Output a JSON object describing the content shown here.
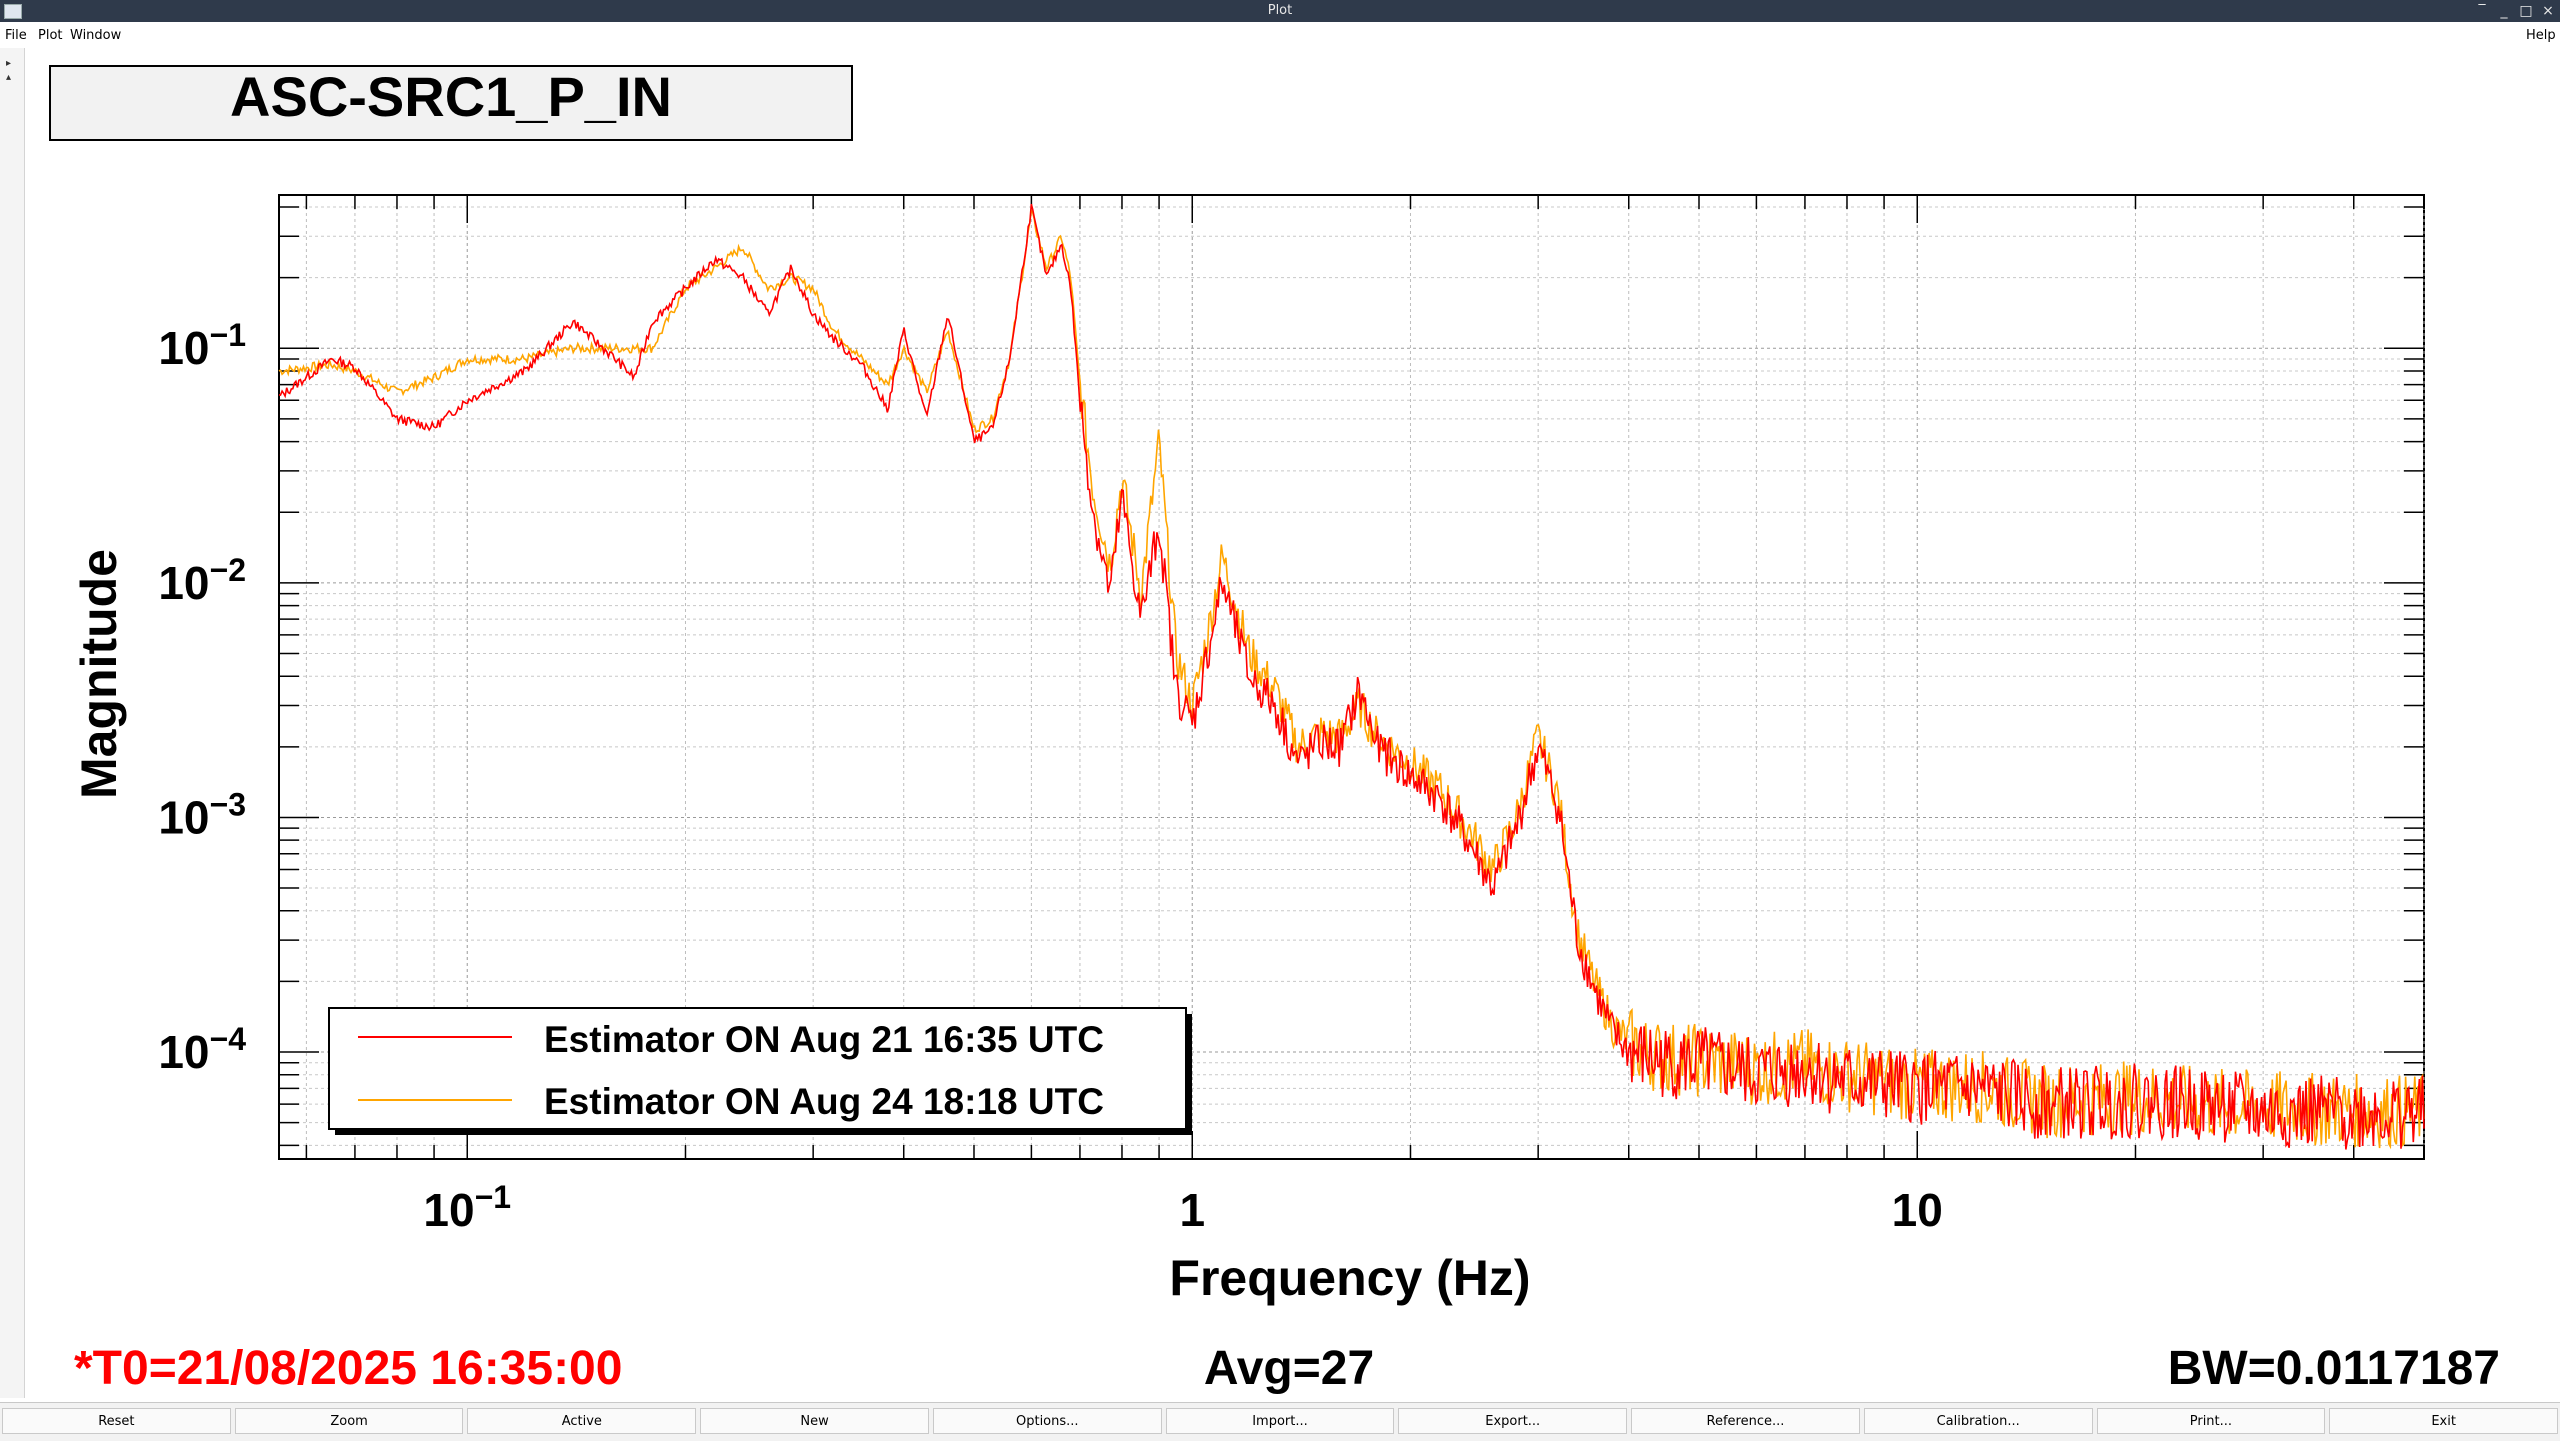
{
  "window": {
    "title": "Plot"
  },
  "menu": {
    "file": "File",
    "plot": "Plot",
    "window": "Window",
    "help": "Help"
  },
  "plot": {
    "title": "ASC-SRC1_P_IN",
    "xlabel": "Frequency (Hz)",
    "ylabel": "Magnitude",
    "t0": "*T0=21/08/2025 16:35:00",
    "avg": "Avg=27",
    "bw": "BW=0.0117187",
    "colors": {
      "series1": "#ff0000",
      "series2": "#ffa500",
      "t0": "#ff0000"
    }
  },
  "chart_data": {
    "type": "line",
    "title": "ASC-SRC1_P_IN",
    "xlabel": "Frequency (Hz)",
    "ylabel": "Magnitude",
    "xscale": "log",
    "yscale": "log",
    "xlim": [
      0.055,
      50
    ],
    "ylim": [
      3.5e-05,
      0.45
    ],
    "xticks": [
      "10^-1",
      "1",
      "10"
    ],
    "yticks": [
      "10^-1",
      "10^-2",
      "10^-3",
      "10^-4"
    ],
    "grid": true,
    "legend_position": "bottom-left",
    "series": [
      {
        "name": "Estimator ON Aug 21 16:35 UTC",
        "color": "#ff0000",
        "x": [
          0.055,
          0.065,
          0.07,
          0.08,
          0.09,
          0.1,
          0.12,
          0.14,
          0.16,
          0.17,
          0.18,
          0.2,
          0.22,
          0.24,
          0.26,
          0.28,
          0.3,
          0.32,
          0.35,
          0.38,
          0.4,
          0.43,
          0.46,
          0.5,
          0.53,
          0.56,
          0.6,
          0.63,
          0.66,
          0.68,
          0.7,
          0.73,
          0.77,
          0.8,
          0.85,
          0.9,
          0.95,
          1.0,
          1.05,
          1.1,
          1.2,
          1.3,
          1.4,
          1.5,
          1.6,
          1.7,
          1.8,
          2.0,
          2.2,
          2.4,
          2.6,
          2.8,
          3.0,
          3.2,
          3.4,
          3.6,
          3.8,
          4.0,
          4.2,
          4.5,
          5,
          6,
          7,
          8,
          10,
          12,
          15,
          20,
          25,
          30,
          40,
          50
        ],
        "values": [
          0.062,
          0.09,
          0.083,
          0.05,
          0.046,
          0.06,
          0.08,
          0.13,
          0.09,
          0.075,
          0.13,
          0.18,
          0.24,
          0.2,
          0.14,
          0.22,
          0.14,
          0.11,
          0.085,
          0.055,
          0.12,
          0.05,
          0.14,
          0.04,
          0.045,
          0.09,
          0.4,
          0.2,
          0.28,
          0.18,
          0.06,
          0.02,
          0.009,
          0.023,
          0.007,
          0.018,
          0.0035,
          0.0025,
          0.005,
          0.01,
          0.004,
          0.003,
          0.0017,
          0.0021,
          0.002,
          0.0035,
          0.002,
          0.0015,
          0.0012,
          0.0008,
          0.0005,
          0.0009,
          0.002,
          0.0011,
          0.0003,
          0.00018,
          0.00012,
          0.0001,
          9.5e-05,
          9e-05,
          9e-05,
          8e-05,
          8.5e-05,
          7.5e-05,
          7e-05,
          7e-05,
          6e-05,
          6.2e-05,
          6e-05,
          5.5e-05,
          5.5e-05,
          5.5e-05
        ]
      },
      {
        "name": "Estimator ON Aug 24 18:18 UTC",
        "color": "#ffa500",
        "x": [
          0.055,
          0.065,
          0.07,
          0.08,
          0.09,
          0.1,
          0.12,
          0.14,
          0.16,
          0.17,
          0.18,
          0.2,
          0.22,
          0.24,
          0.26,
          0.28,
          0.3,
          0.32,
          0.35,
          0.38,
          0.4,
          0.43,
          0.46,
          0.5,
          0.53,
          0.56,
          0.6,
          0.63,
          0.66,
          0.68,
          0.7,
          0.73,
          0.77,
          0.8,
          0.85,
          0.9,
          0.95,
          1.0,
          1.05,
          1.1,
          1.2,
          1.3,
          1.4,
          1.5,
          1.6,
          1.7,
          1.8,
          2.0,
          2.2,
          2.4,
          2.6,
          2.8,
          3.0,
          3.2,
          3.4,
          3.6,
          3.8,
          4.0,
          4.2,
          4.5,
          5,
          6,
          7,
          8,
          10,
          12,
          15,
          20,
          25,
          30,
          40,
          50
        ],
        "values": [
          0.08,
          0.085,
          0.08,
          0.065,
          0.075,
          0.09,
          0.09,
          0.1,
          0.1,
          0.1,
          0.1,
          0.18,
          0.22,
          0.27,
          0.18,
          0.2,
          0.18,
          0.12,
          0.09,
          0.07,
          0.1,
          0.065,
          0.12,
          0.045,
          0.05,
          0.09,
          0.38,
          0.22,
          0.3,
          0.2,
          0.07,
          0.025,
          0.012,
          0.028,
          0.009,
          0.04,
          0.005,
          0.003,
          0.006,
          0.013,
          0.005,
          0.0035,
          0.002,
          0.0023,
          0.0022,
          0.003,
          0.0022,
          0.0017,
          0.0013,
          0.0009,
          0.0006,
          0.001,
          0.0022,
          0.0012,
          0.00032,
          0.00019,
          0.00013,
          0.00011,
          0.0001,
          9.5e-05,
          9.2e-05,
          8.5e-05,
          8.8e-05,
          8e-05,
          7.2e-05,
          7.2e-05,
          6.2e-05,
          6.4e-05,
          6e-05,
          5.8e-05,
          5.6e-05,
          5.6e-05
        ]
      }
    ]
  },
  "buttons": [
    "Reset",
    "Zoom",
    "Active",
    "New",
    "Options...",
    "Import...",
    "Export...",
    "Reference...",
    "Calibration...",
    "Print...",
    "Exit"
  ]
}
